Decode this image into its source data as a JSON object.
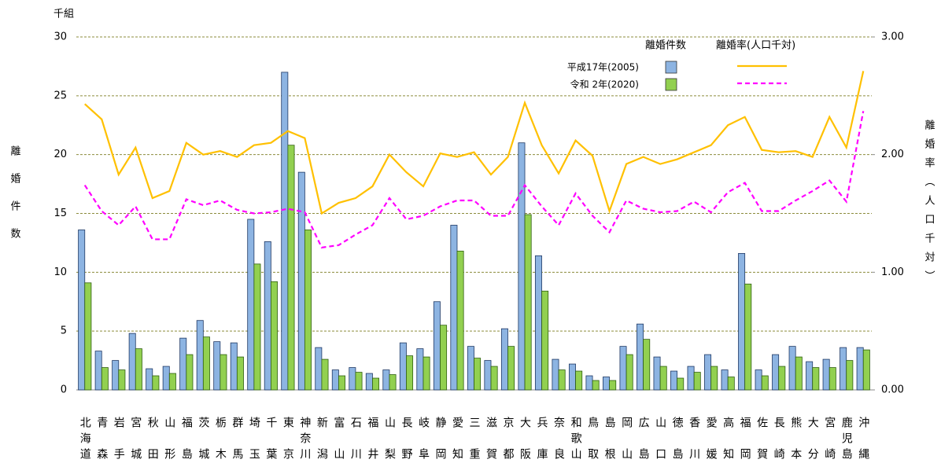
{
  "chart_data": {
    "type": "bar-line",
    "unit_label": "千組",
    "y_label": "離婚件数",
    "y2_label": "離婚率（人口千対）",
    "legend_headers": [
      "離婚件数",
      "離婚率(人口千対)"
    ],
    "categories": [
      "北海道",
      "青森",
      "岩手",
      "宮城",
      "秋田",
      "山形",
      "福島",
      "茨城",
      "栃木",
      "群馬",
      "埼玉",
      "千葉",
      "東京",
      "神奈川",
      "新潟",
      "富山",
      "石川",
      "福井",
      "山梨",
      "長野",
      "岐阜",
      "静岡",
      "愛知",
      "三重",
      "滋賀",
      "京都",
      "大阪",
      "兵庫",
      "奈良",
      "和歌山",
      "鳥取",
      "島根",
      "岡山",
      "広島",
      "山口",
      "徳島",
      "香川",
      "愛媛",
      "高知",
      "福岡",
      "佐賀",
      "長崎",
      "熊本",
      "大分",
      "宮崎",
      "鹿児島",
      "沖縄"
    ],
    "bar_series": [
      {
        "name": "平成17年(2005)",
        "color": "#8db4e2",
        "values": [
          13.6,
          3.3,
          2.5,
          4.8,
          1.8,
          2.0,
          4.4,
          5.9,
          4.1,
          4.0,
          14.5,
          12.6,
          27.0,
          18.5,
          3.6,
          1.7,
          1.9,
          1.4,
          1.7,
          4.0,
          3.5,
          7.5,
          14.0,
          3.7,
          2.5,
          5.2,
          21.0,
          11.4,
          2.6,
          2.2,
          1.2,
          1.1,
          3.7,
          5.6,
          2.8,
          1.6,
          2.0,
          3.0,
          1.7,
          11.6,
          1.7,
          3.0,
          3.7,
          2.4,
          2.6,
          3.6,
          3.6
        ]
      },
      {
        "name": "令和 2年(2020)",
        "color": "#92d050",
        "values": [
          9.1,
          1.9,
          1.7,
          3.5,
          1.2,
          1.4,
          3.0,
          4.5,
          3.0,
          2.8,
          10.7,
          9.2,
          20.8,
          13.6,
          2.6,
          1.2,
          1.5,
          1.0,
          1.3,
          2.9,
          2.8,
          5.5,
          11.8,
          2.7,
          2.0,
          3.7,
          14.9,
          8.4,
          1.7,
          1.6,
          0.8,
          0.8,
          3.0,
          4.3,
          2.0,
          1.0,
          1.5,
          2.0,
          1.1,
          9.0,
          1.2,
          2.0,
          2.8,
          1.9,
          1.9,
          2.5,
          3.4
        ]
      }
    ],
    "line_series": [
      {
        "color": "#ffc000",
        "dashed": false,
        "axis": "y2",
        "values": [
          2.43,
          2.3,
          1.83,
          2.06,
          1.63,
          1.69,
          2.1,
          2.0,
          2.03,
          1.98,
          2.08,
          2.1,
          2.2,
          2.14,
          1.5,
          1.59,
          1.63,
          1.73,
          2.0,
          1.85,
          1.73,
          2.01,
          1.98,
          2.02,
          1.83,
          1.98,
          2.44,
          2.08,
          1.84,
          2.12,
          1.99,
          1.52,
          1.92,
          1.98,
          1.92,
          1.96,
          2.02,
          2.08,
          2.25,
          2.32,
          2.04,
          2.02,
          2.03,
          1.98,
          2.32,
          2.06,
          2.71
        ]
      },
      {
        "color": "#ff00ff",
        "dashed": true,
        "axis": "y2",
        "values": [
          1.74,
          1.52,
          1.4,
          1.56,
          1.28,
          1.28,
          1.62,
          1.57,
          1.61,
          1.53,
          1.5,
          1.51,
          1.54,
          1.51,
          1.21,
          1.23,
          1.32,
          1.4,
          1.63,
          1.45,
          1.48,
          1.56,
          1.61,
          1.61,
          1.48,
          1.48,
          1.74,
          1.56,
          1.4,
          1.67,
          1.48,
          1.34,
          1.61,
          1.54,
          1.51,
          1.52,
          1.6,
          1.51,
          1.68,
          1.76,
          1.52,
          1.52,
          1.61,
          1.69,
          1.78,
          1.6,
          2.37
        ]
      }
    ],
    "ylim": [
      0,
      30
    ],
    "yticks": [
      0,
      5,
      10,
      15,
      20,
      25,
      30
    ],
    "y2lim": [
      0,
      3
    ],
    "y2ticks": [
      {
        "value": 0,
        "label": "0.00"
      },
      {
        "value": 1,
        "label": "1.00"
      },
      {
        "value": 2,
        "label": "2.00"
      },
      {
        "value": 3,
        "label": "3.00"
      }
    ],
    "grid": true
  }
}
